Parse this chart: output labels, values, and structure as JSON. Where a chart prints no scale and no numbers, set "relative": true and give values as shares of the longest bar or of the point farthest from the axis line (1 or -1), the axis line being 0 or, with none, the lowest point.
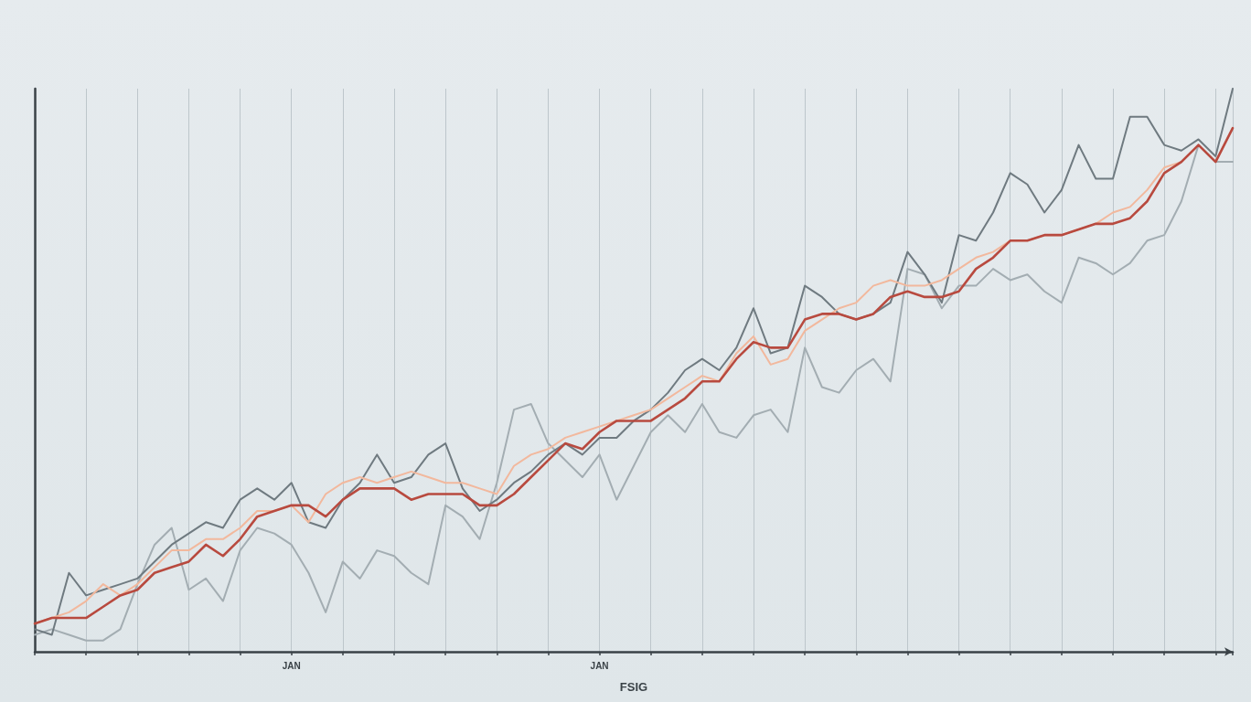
{
  "chart_data": {
    "type": "line",
    "relative": true,
    "xlabel": "FSIG",
    "grid": "x",
    "categories": [
      null,
      null,
      null,
      null,
      null,
      null,
      null,
      null,
      null,
      null,
      null,
      null,
      null,
      null,
      null,
      "JAN",
      null,
      null,
      null,
      null,
      null,
      null,
      null,
      null,
      null,
      null,
      null,
      null,
      null,
      null,
      null,
      null,
      null,
      "JAN",
      null,
      null,
      null,
      null,
      null,
      null,
      null,
      null,
      null,
      null,
      null,
      null,
      null,
      null,
      null,
      null,
      null,
      null,
      null,
      null,
      null,
      null,
      null,
      null,
      null,
      null,
      null,
      null,
      null,
      null,
      null,
      null,
      null,
      null,
      null,
      null,
      null
    ],
    "series": [
      {
        "color": "#a3adb2",
        "values": [
          0.03,
          0.04,
          0.03,
          0.02,
          0.02,
          0.04,
          0.12,
          0.19,
          0.22,
          0.11,
          0.13,
          0.09,
          0.18,
          0.22,
          0.21,
          0.19,
          0.14,
          0.07,
          0.16,
          0.13,
          0.18,
          0.17,
          0.14,
          0.12,
          0.26,
          0.24,
          0.2,
          0.3,
          0.43,
          0.44,
          0.37,
          0.34,
          0.31,
          0.35,
          0.27,
          0.33,
          0.39,
          0.42,
          0.39,
          0.44,
          0.39,
          0.38,
          0.42,
          0.43,
          0.39,
          0.54,
          0.47,
          0.46,
          0.5,
          0.52,
          0.48,
          0.68,
          0.67,
          0.61,
          0.65,
          0.65,
          0.68,
          0.66,
          0.67,
          0.64,
          0.62,
          0.7,
          0.69,
          0.67,
          0.69,
          0.73,
          0.74,
          0.8,
          0.9,
          0.87,
          0.87
        ]
      },
      {
        "color": "#6f7a80",
        "values": [
          0.04,
          0.03,
          0.14,
          0.1,
          0.11,
          0.12,
          0.13,
          0.16,
          0.19,
          0.21,
          0.23,
          0.22,
          0.27,
          0.29,
          0.27,
          0.3,
          0.23,
          0.22,
          0.27,
          0.3,
          0.35,
          0.3,
          0.31,
          0.35,
          0.37,
          0.29,
          0.25,
          0.27,
          0.3,
          0.32,
          0.35,
          0.37,
          0.35,
          0.38,
          0.38,
          0.41,
          0.43,
          0.46,
          0.5,
          0.52,
          0.5,
          0.54,
          0.61,
          0.53,
          0.54,
          0.65,
          0.63,
          0.6,
          0.59,
          0.6,
          0.62,
          0.71,
          0.67,
          0.62,
          0.74,
          0.73,
          0.78,
          0.85,
          0.83,
          0.78,
          0.82,
          0.9,
          0.84,
          0.84,
          0.95,
          0.95,
          0.9,
          0.89,
          0.91,
          0.88,
          1.0
        ]
      },
      {
        "color": "#f2b89d",
        "values": [
          0.05,
          0.06,
          0.07,
          0.09,
          0.12,
          0.1,
          0.12,
          0.15,
          0.18,
          0.18,
          0.2,
          0.2,
          0.22,
          0.25,
          0.25,
          0.26,
          0.23,
          0.28,
          0.3,
          0.31,
          0.3,
          0.31,
          0.32,
          0.31,
          0.3,
          0.3,
          0.29,
          0.28,
          0.33,
          0.35,
          0.36,
          0.38,
          0.39,
          0.4,
          0.41,
          0.42,
          0.43,
          0.45,
          0.47,
          0.49,
          0.48,
          0.53,
          0.56,
          0.51,
          0.52,
          0.57,
          0.59,
          0.61,
          0.62,
          0.65,
          0.66,
          0.65,
          0.65,
          0.66,
          0.68,
          0.7,
          0.71,
          0.73,
          0.73,
          0.74,
          0.74,
          0.75,
          0.76,
          0.78,
          0.79,
          0.82,
          0.86,
          0.87,
          0.9,
          0.87,
          0.93
        ]
      },
      {
        "color": "#b84a3f",
        "values": [
          0.05,
          0.06,
          0.06,
          0.06,
          0.08,
          0.1,
          0.11,
          0.14,
          0.15,
          0.16,
          0.19,
          0.17,
          0.2,
          0.24,
          0.25,
          0.26,
          0.26,
          0.24,
          0.27,
          0.29,
          0.29,
          0.29,
          0.27,
          0.28,
          0.28,
          0.28,
          0.26,
          0.26,
          0.28,
          0.31,
          0.34,
          0.37,
          0.36,
          0.39,
          0.41,
          0.41,
          0.41,
          0.43,
          0.45,
          0.48,
          0.48,
          0.52,
          0.55,
          0.54,
          0.54,
          0.59,
          0.6,
          0.6,
          0.59,
          0.6,
          0.63,
          0.64,
          0.63,
          0.63,
          0.64,
          0.68,
          0.7,
          0.73,
          0.73,
          0.74,
          0.74,
          0.75,
          0.76,
          0.76,
          0.77,
          0.8,
          0.85,
          0.87,
          0.9,
          0.87,
          0.93
        ]
      }
    ]
  }
}
